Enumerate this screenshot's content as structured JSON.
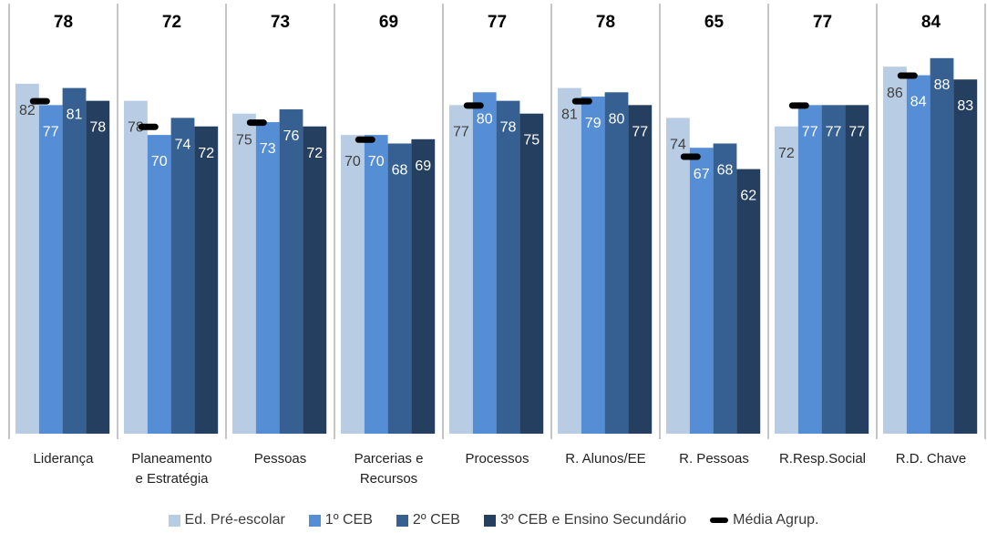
{
  "chart_data": {
    "type": "bar",
    "categories": [
      [
        "Liderança"
      ],
      [
        "Planeamento",
        "e Estratégia"
      ],
      [
        "Pessoas"
      ],
      [
        "Parcerias e",
        "Recursos"
      ],
      [
        "Processos"
      ],
      [
        "R. Alunos/EE"
      ],
      [
        "R. Pessoas"
      ],
      [
        "R.Resp.Social"
      ],
      [
        "R.D. Chave"
      ]
    ],
    "series": [
      {
        "name": "Ed. Pré-escolar",
        "color": "#b8cce4",
        "values": [
          82,
          78,
          75,
          70,
          77,
          81,
          74,
          72,
          86
        ]
      },
      {
        "name": "1º CEB",
        "color": "#558ed5",
        "values": [
          77,
          70,
          73,
          70,
          80,
          79,
          67,
          77,
          84
        ]
      },
      {
        "name": "2º CEB",
        "color": "#376092",
        "values": [
          81,
          74,
          76,
          68,
          78,
          80,
          68,
          77,
          88
        ]
      },
      {
        "name": "3º CEB e Ensino Secundário",
        "color": "#243f60",
        "values": [
          78,
          72,
          72,
          69,
          75,
          77,
          62,
          77,
          83
        ]
      }
    ],
    "average": {
      "name": "Média Agrup.",
      "color": "#000000",
      "values": [
        78,
        72,
        73,
        69,
        77,
        78,
        65,
        77,
        84
      ]
    },
    "ylim": [
      0,
      100
    ],
    "grid": false,
    "legend_position": "bottom"
  }
}
